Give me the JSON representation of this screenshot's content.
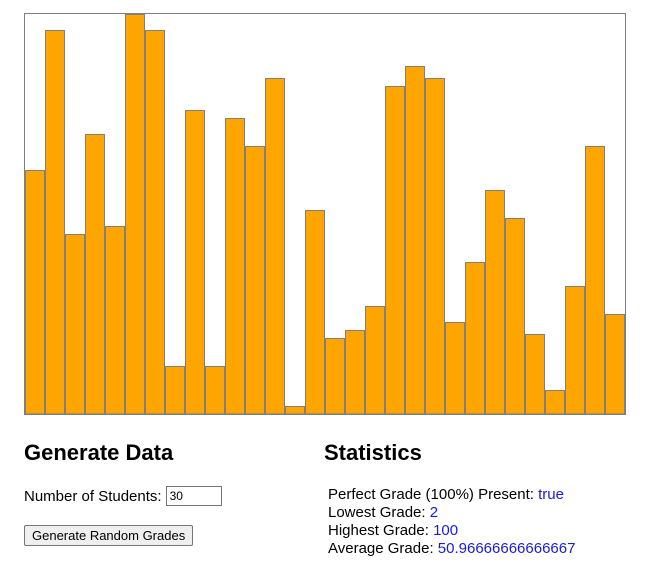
{
  "chart_data": {
    "type": "bar",
    "values": [
      61,
      96,
      45,
      70,
      47,
      100,
      96,
      12,
      76,
      12,
      74,
      67,
      84,
      2,
      51,
      19,
      21,
      27,
      82,
      87,
      84,
      23,
      38,
      56,
      49,
      20,
      6,
      32,
      67,
      25
    ],
    "ylim": [
      0,
      100
    ],
    "title": "",
    "xlabel": "",
    "ylabel": "",
    "grid": false,
    "bar_color": "#ffa500",
    "bar_stroke": "#808080"
  },
  "generate": {
    "heading": "Generate Data",
    "students_label": "Number of Students:",
    "students_value": "30",
    "button_label": "Generate Random Grades"
  },
  "stats": {
    "heading": "Statistics",
    "perfect_label": "Perfect Grade (100%) Present:",
    "perfect_value": "true",
    "lowest_label": "Lowest Grade:",
    "lowest_value": "2",
    "highest_label": "Highest Grade:",
    "highest_value": "100",
    "average_label": "Average Grade:",
    "average_value": "50.96666666666667",
    "value_color": "#1a1adb"
  }
}
